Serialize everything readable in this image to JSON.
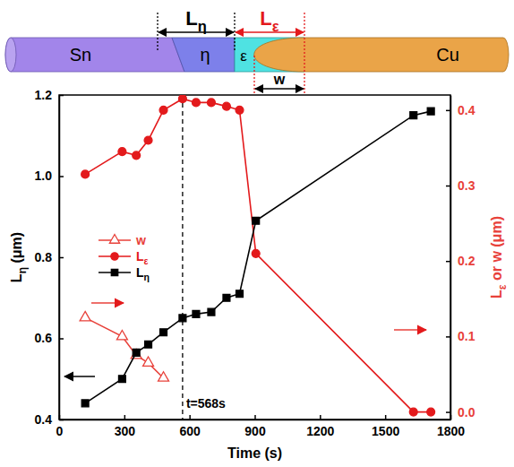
{
  "diagram": {
    "regions": [
      "Sn",
      "η",
      "ε",
      "Cu"
    ],
    "dimensions": [
      "Lη",
      "Lε",
      "w"
    ]
  },
  "chart_data": {
    "type": "line",
    "x_label": "Time (s)",
    "y_label": "Lη (μm)",
    "y2_label": "Lε or w (μm)",
    "xlim": [
      0,
      1800
    ],
    "xticks": [
      0,
      300,
      600,
      900,
      1200,
      1500,
      1800
    ],
    "ylim": [
      0.4,
      1.2
    ],
    "yticks": [
      0.4,
      0.6,
      0.8,
      {
        "value": 1,
        "label": "1.0"
      },
      1.2
    ],
    "y2lim": [
      -0.01,
      0.42
    ],
    "y2ticks": [
      {
        "value": 0,
        "label": "0.0"
      },
      0.1,
      0.2,
      0.3,
      0.4
    ],
    "legend": "left",
    "series": [
      {
        "name": "w",
        "color": "#e8413a",
        "marker": "triangle-open",
        "line_style": "solid",
        "axis": "y2",
        "x": [
          120,
          290,
          355,
          410,
          480
        ],
        "values": [
          0.125,
          0.1,
          0.075,
          0.065,
          0.045
        ]
      },
      {
        "name": "Lε",
        "color": "#e31a1c",
        "marker": "circle",
        "line_style": "solid",
        "axis": "y2",
        "x": [
          120,
          290,
          355,
          410,
          480,
          568,
          630,
          700,
          770,
          830,
          905,
          1630,
          1710
        ],
        "values": [
          0.315,
          0.345,
          0.34,
          0.36,
          0.4,
          0.415,
          0.41,
          0.41,
          0.405,
          0.4,
          0.21,
          0.0,
          0.0
        ]
      },
      {
        "name": "Lη",
        "color": "#000000",
        "marker": "square",
        "line_style": "solid",
        "axis": "y",
        "x": [
          120,
          290,
          355,
          410,
          480,
          568,
          630,
          700,
          770,
          830,
          905,
          1630,
          1710
        ],
        "values": [
          0.44,
          0.5,
          0.565,
          0.585,
          0.615,
          0.65,
          0.66,
          0.665,
          0.7,
          0.71,
          0.89,
          1.15,
          1.16
        ]
      }
    ],
    "annotations": [
      {
        "text": "t=568s",
        "x": 568
      }
    ]
  }
}
